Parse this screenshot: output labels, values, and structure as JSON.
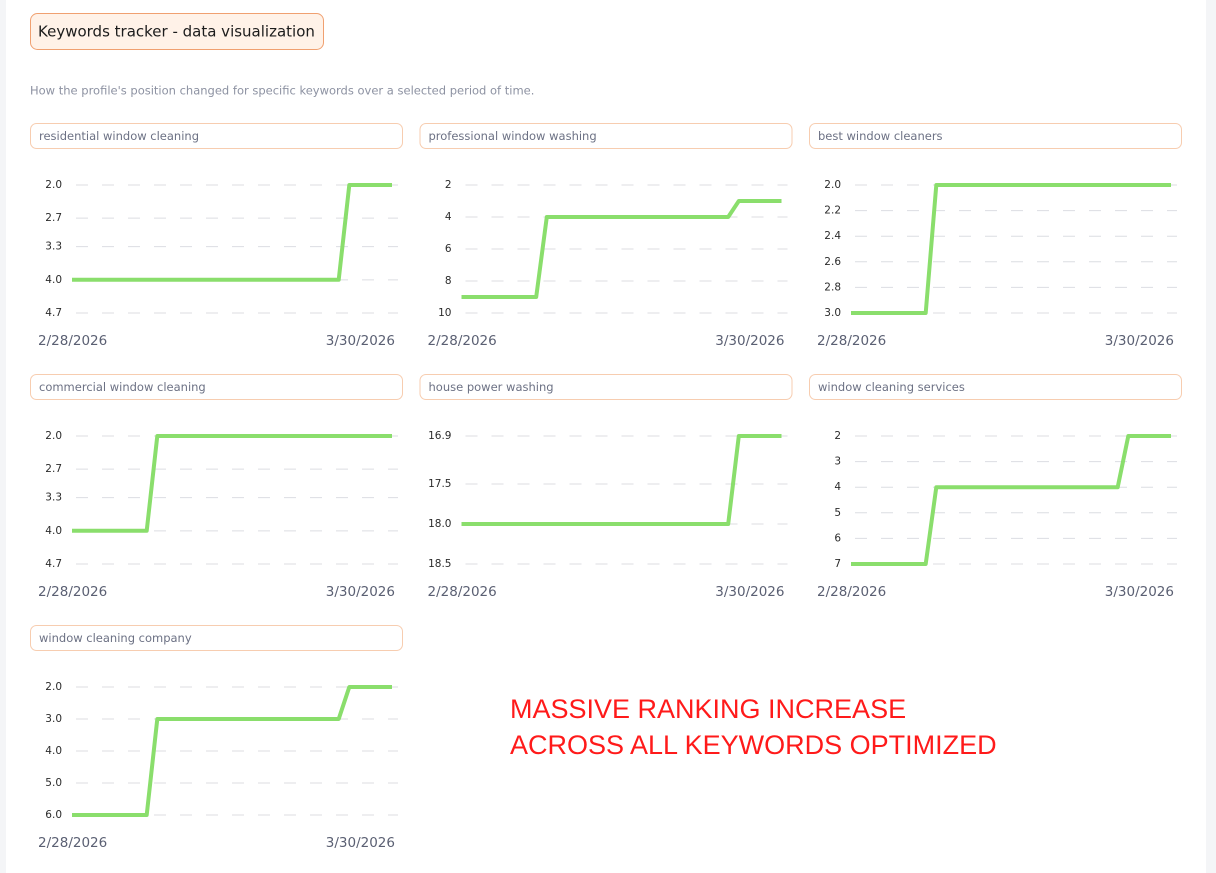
{
  "title": "Keywords tracker - data visualization",
  "subtitle": "How the profile's position changed for specific keywords over a selected period of time.",
  "annotation": [
    "MASSIVE RANKING INCREASE",
    "ACROSS ALL KEYWORDS OPTIMIZED"
  ],
  "chart_data": [
    {
      "type": "line",
      "title": "residential window cleaning",
      "color": "#8ade6c",
      "x": [
        "2/28/2026",
        "3/25/2026",
        "3/26/2026",
        "3/30/2026"
      ],
      "values": [
        4,
        4,
        2,
        2
      ],
      "ylim": [
        2,
        4.7
      ],
      "y_reversed": true,
      "grid": true,
      "yticks": [
        {
          "value": 2,
          "label": "2.0"
        },
        2.7,
        3.3,
        {
          "value": 4,
          "label": "4.0"
        },
        4.7
      ]
    },
    {
      "type": "line",
      "title": "professional window washing",
      "color": "#8ade6c",
      "x": [
        "2/28/2026",
        "3/7/2026",
        "3/8/2026",
        "3/25/2026",
        "3/26/2026",
        "3/30/2026"
      ],
      "values": [
        9,
        9,
        4,
        4,
        3,
        3
      ],
      "ylim": [
        2,
        10
      ],
      "y_reversed": true,
      "grid": true,
      "yticks": [
        2,
        4,
        6,
        8,
        10
      ]
    },
    {
      "type": "line",
      "title": "best window cleaners",
      "color": "#8ade6c",
      "x": [
        "2/28/2026",
        "3/7/2026",
        "3/8/2026",
        "3/30/2026"
      ],
      "values": [
        3,
        3,
        2,
        2
      ],
      "ylim": [
        2,
        3
      ],
      "y_reversed": true,
      "grid": true,
      "yticks": [
        {
          "value": 2,
          "label": "2.0"
        },
        2.2,
        2.4,
        2.6,
        2.8,
        {
          "value": 3,
          "label": "3.0"
        }
      ]
    },
    {
      "type": "line",
      "title": "commercial window cleaning",
      "color": "#8ade6c",
      "x": [
        "2/28/2026",
        "3/7/2026",
        "3/8/2026",
        "3/30/2026"
      ],
      "values": [
        4,
        4,
        2,
        2
      ],
      "ylim": [
        2,
        4.7
      ],
      "y_reversed": true,
      "grid": true,
      "yticks": [
        {
          "value": 2,
          "label": "2.0"
        },
        2.7,
        3.3,
        {
          "value": 4,
          "label": "4.0"
        },
        4.7
      ]
    },
    {
      "type": "line",
      "title": "house power washing",
      "color": "#8ade6c",
      "x": [
        "2/28/2026",
        "3/25/2026",
        "3/26/2026",
        "3/30/2026"
      ],
      "values": [
        18,
        18,
        16.9,
        16.9
      ],
      "ylim": [
        16.9,
        18.5
      ],
      "y_reversed": true,
      "grid": true,
      "yticks": [
        16.9,
        17.5,
        {
          "value": 18,
          "label": "18.0"
        },
        18.5
      ]
    },
    {
      "type": "line",
      "title": "window cleaning services",
      "color": "#8ade6c",
      "x": [
        "2/28/2026",
        "3/7/2026",
        "3/8/2026",
        "3/25/2026",
        "3/26/2026",
        "3/30/2026"
      ],
      "values": [
        7,
        7,
        4,
        4,
        2,
        2
      ],
      "ylim": [
        2,
        7
      ],
      "y_reversed": true,
      "grid": true,
      "yticks": [
        2,
        3,
        4,
        5,
        6,
        7
      ]
    },
    {
      "type": "line",
      "title": "window cleaning company",
      "color": "#8ade6c",
      "x": [
        "2/28/2026",
        "3/7/2026",
        "3/8/2026",
        "3/25/2026",
        "3/26/2026",
        "3/30/2026"
      ],
      "values": [
        6,
        6,
        3,
        3,
        2,
        2
      ],
      "ylim": [
        2,
        6
      ],
      "y_reversed": true,
      "grid": true,
      "yticks": [
        {
          "value": 2,
          "label": "2.0"
        },
        {
          "value": 3,
          "label": "3.0"
        },
        {
          "value": 4,
          "label": "4.0"
        },
        {
          "value": 5,
          "label": "5.0"
        },
        {
          "value": 6,
          "label": "6.0"
        }
      ]
    }
  ]
}
